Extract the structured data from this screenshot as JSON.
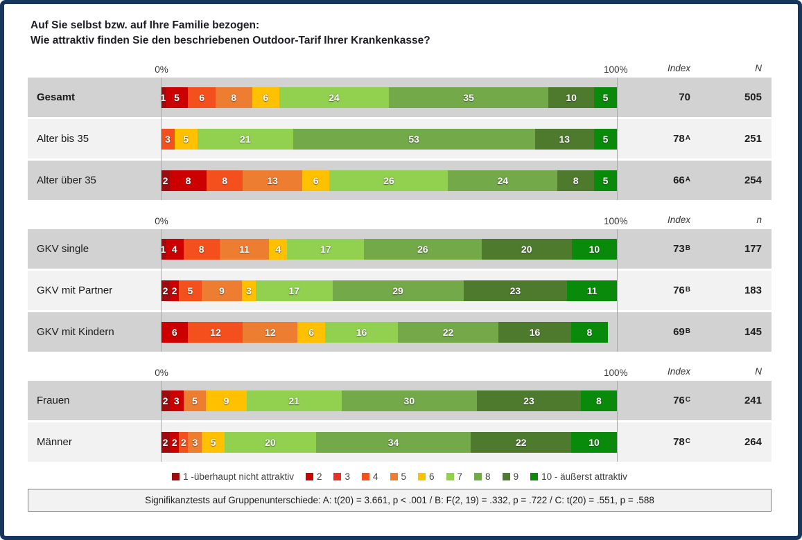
{
  "chart_data": {
    "type": "bar",
    "stacked": true,
    "orientation": "horizontal",
    "unit": "percent",
    "xlim": [
      0,
      100
    ],
    "title_line1": "Auf Sie selbst bzw. auf Ihre Familie bezogen:",
    "title_line2": "Wie attraktiv finden Sie den beschriebenen Outdoor-Tarif Ihrer Krankenkasse?",
    "axis_left_label": "0%",
    "axis_right_label": "100%",
    "index_header": "Index",
    "palette": {
      "s1": "#9e0b0f",
      "s2": "#cc0000",
      "s3": "#e8312a",
      "s4": "#f4501d",
      "s5": "#ed7d31",
      "s6": "#ffc000",
      "s7": "#92d050",
      "s8": "#73a948",
      "s9": "#4e7a2e",
      "s10": "#0a8a0a"
    },
    "legend": [
      {
        "key": "s1",
        "label": "1 -überhaupt nicht attraktiv"
      },
      {
        "key": "s2",
        "label": "2"
      },
      {
        "key": "s3",
        "label": "3"
      },
      {
        "key": "s4",
        "label": "4"
      },
      {
        "key": "s5",
        "label": "5"
      },
      {
        "key": "s6",
        "label": "6"
      },
      {
        "key": "s7",
        "label": "7"
      },
      {
        "key": "s8",
        "label": "8"
      },
      {
        "key": "s9",
        "label": "9"
      },
      {
        "key": "s10",
        "label": "10 - äußerst attraktiv"
      }
    ],
    "groups": [
      {
        "n_header": "N",
        "rows": [
          {
            "label": "Gesamt",
            "bold": true,
            "index": "70",
            "index_sup": "",
            "n": "505",
            "segments": [
              [
                1,
                "s1"
              ],
              [
                5,
                "s2"
              ],
              [
                6,
                "s4"
              ],
              [
                8,
                "s5"
              ],
              [
                6,
                "s6"
              ],
              [
                24,
                "s7"
              ],
              [
                35,
                "s8"
              ],
              [
                10,
                "s9"
              ],
              [
                5,
                "s10"
              ]
            ]
          },
          {
            "label": "Alter bis 35",
            "bold": false,
            "index": "78",
            "index_sup": "A",
            "n": "251",
            "segments": [
              [
                3,
                "s4"
              ],
              [
                5,
                "s6"
              ],
              [
                21,
                "s7"
              ],
              [
                53,
                "s8"
              ],
              [
                13,
                "s9"
              ],
              [
                5,
                "s10"
              ]
            ]
          },
          {
            "label": "Alter über 35",
            "bold": false,
            "index": "66",
            "index_sup": "A",
            "n": "254",
            "segments": [
              [
                2,
                "s1"
              ],
              [
                8,
                "s2"
              ],
              [
                8,
                "s4"
              ],
              [
                13,
                "s5"
              ],
              [
                6,
                "s6"
              ],
              [
                26,
                "s7"
              ],
              [
                24,
                "s8"
              ],
              [
                8,
                "s9"
              ],
              [
                5,
                "s10"
              ]
            ]
          }
        ]
      },
      {
        "n_header": "n",
        "rows": [
          {
            "label": "GKV single",
            "bold": false,
            "index": "73",
            "index_sup": "B",
            "n": "177",
            "segments": [
              [
                1,
                "s1"
              ],
              [
                4,
                "s2"
              ],
              [
                8,
                "s4"
              ],
              [
                11,
                "s5"
              ],
              [
                4,
                "s6"
              ],
              [
                17,
                "s7"
              ],
              [
                26,
                "s8"
              ],
              [
                20,
                "s9"
              ],
              [
                10,
                "s10"
              ]
            ]
          },
          {
            "label": "GKV mit Partner",
            "bold": false,
            "index": "76",
            "index_sup": "B",
            "n": "183",
            "segments": [
              [
                2,
                "s1"
              ],
              [
                2,
                "s2"
              ],
              [
                5,
                "s4"
              ],
              [
                9,
                "s5"
              ],
              [
                3,
                "s6"
              ],
              [
                17,
                "s7"
              ],
              [
                29,
                "s8"
              ],
              [
                23,
                "s9"
              ],
              [
                11,
                "s10"
              ]
            ]
          },
          {
            "label": "GKV mit Kindern",
            "bold": false,
            "index": "69",
            "index_sup": "B",
            "n": "145",
            "segments": [
              [
                6,
                "s2"
              ],
              [
                12,
                "s4"
              ],
              [
                12,
                "s5"
              ],
              [
                6,
                "s6"
              ],
              [
                16,
                "s7"
              ],
              [
                22,
                "s8"
              ],
              [
                16,
                "s9"
              ],
              [
                8,
                "s10"
              ]
            ]
          }
        ]
      },
      {
        "n_header": "N",
        "rows": [
          {
            "label": "Frauen",
            "bold": false,
            "index": "76",
            "index_sup": "C",
            "n": "241",
            "segments": [
              [
                2,
                "s1"
              ],
              [
                3,
                "s2"
              ],
              [
                5,
                "s5"
              ],
              [
                9,
                "s6"
              ],
              [
                21,
                "s7"
              ],
              [
                30,
                "s8"
              ],
              [
                23,
                "s9"
              ],
              [
                8,
                "s10"
              ]
            ]
          },
          {
            "label": "Männer",
            "bold": false,
            "index": "78",
            "index_sup": "C",
            "n": "264",
            "segments": [
              [
                2,
                "s1"
              ],
              [
                2,
                "s2"
              ],
              [
                2,
                "s4"
              ],
              [
                3,
                "s5"
              ],
              [
                5,
                "s6"
              ],
              [
                20,
                "s7"
              ],
              [
                34,
                "s8"
              ],
              [
                22,
                "s9"
              ],
              [
                10,
                "s10"
              ]
            ]
          }
        ]
      }
    ],
    "footnote": "Signifikanztests auf Gruppenunterschiede: A: t(20) = 3.661, p < .001 / B: F(2, 19) = .332, p = .722 / C: t(20) = .551, p = .588"
  }
}
